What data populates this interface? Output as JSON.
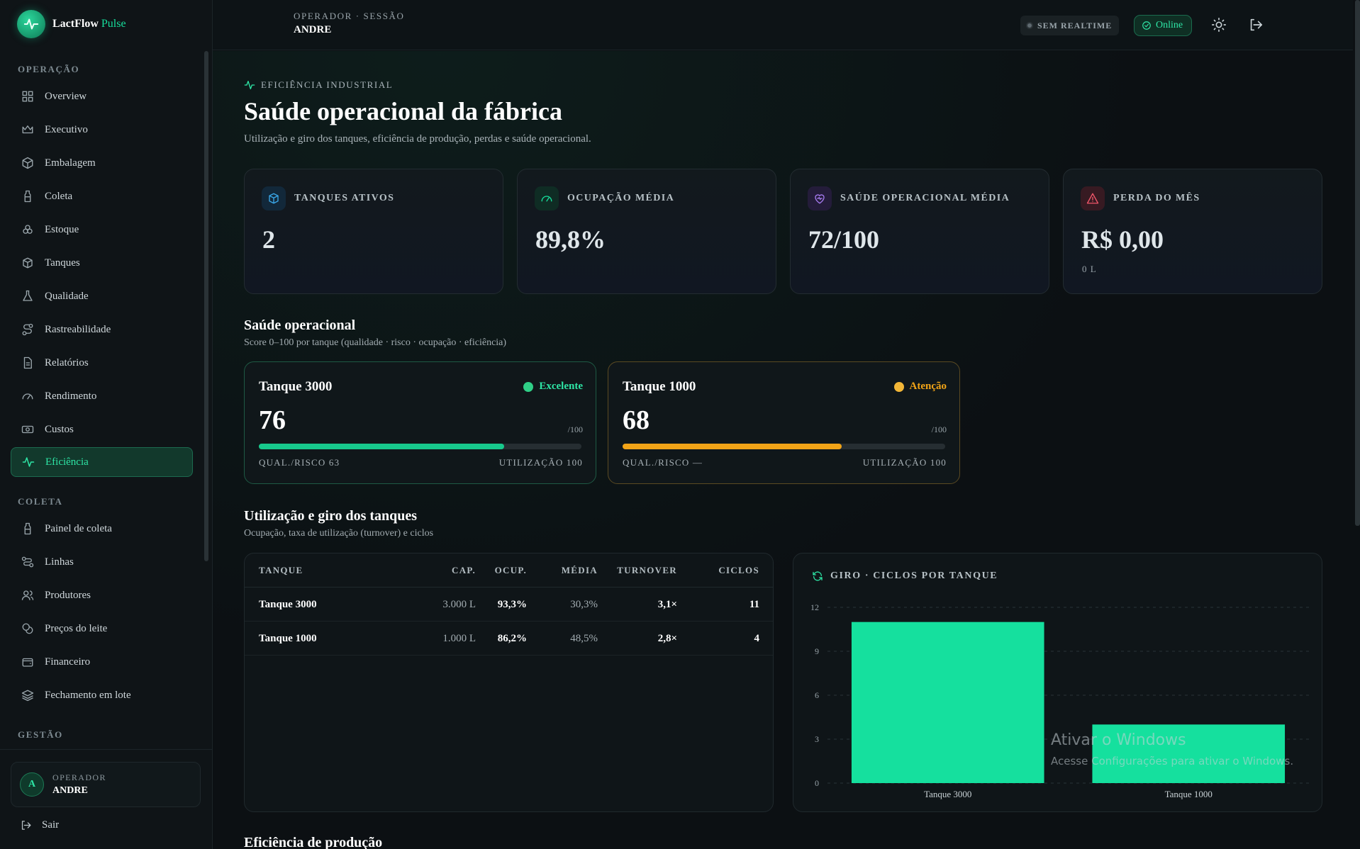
{
  "brand": {
    "name": "LactFlow",
    "accent": "Pulse"
  },
  "sidebar": {
    "sections": [
      {
        "label": "OPERAÇÃO"
      },
      {
        "label": "COLETA"
      },
      {
        "label": "GESTÃO"
      }
    ],
    "items": [
      {
        "label": "Overview",
        "icon": "grid-icon"
      },
      {
        "label": "Executivo",
        "icon": "crown-icon"
      },
      {
        "label": "Embalagem",
        "icon": "package-icon"
      },
      {
        "label": "Coleta",
        "icon": "bottle-icon"
      },
      {
        "label": "Estoque",
        "icon": "boxes-icon"
      },
      {
        "label": "Tanques",
        "icon": "tank-icon"
      },
      {
        "label": "Qualidade",
        "icon": "flask-icon"
      },
      {
        "label": "Rastreabilidade",
        "icon": "route-icon"
      },
      {
        "label": "Relatórios",
        "icon": "report-icon"
      },
      {
        "label": "Rendimento",
        "icon": "gauge-icon"
      },
      {
        "label": "Custos",
        "icon": "money-icon"
      },
      {
        "label": "Eficiência",
        "icon": "activity-icon",
        "active": true
      },
      {
        "label": "Painel de coleta",
        "icon": "milk-icon"
      },
      {
        "label": "Linhas",
        "icon": "path-icon"
      },
      {
        "label": "Produtores",
        "icon": "users-icon"
      },
      {
        "label": "Preços do leite",
        "icon": "coins-icon"
      },
      {
        "label": "Financeiro",
        "icon": "wallet-icon"
      },
      {
        "label": "Fechamento em lote",
        "icon": "layers-icon"
      }
    ],
    "operator": {
      "initial": "A",
      "role": "OPERADOR",
      "name": "ANDRE"
    },
    "logout": "Sair"
  },
  "topbar": {
    "session_label": "OPERADOR · SESSÃO",
    "session_user": "ANDRE",
    "realtime": "SEM REALTIME",
    "online": "Online"
  },
  "page": {
    "eyebrow": "EFICIÊNCIA INDUSTRIAL",
    "title": "Saúde operacional da fábrica",
    "subtitle": "Utilização e giro dos tanques, eficiência de produção, perdas e saúde operacional."
  },
  "kpis": [
    {
      "label": "TANQUES ATIVOS",
      "value": "2",
      "sub": "",
      "icon": "cube-icon",
      "color": "#3aa7e8"
    },
    {
      "label": "OCUPAÇÃO MÉDIA",
      "value": "89,8%",
      "sub": "",
      "icon": "gauge-icon",
      "color": "#17dd9b"
    },
    {
      "label": "SAÚDE OPERACIONAL MÉDIA",
      "value": "72/100",
      "sub": "",
      "icon": "heart-pulse-icon",
      "color": "#a77bf0"
    },
    {
      "label": "PERDA DO MÊS",
      "value": "R$ 0,00",
      "sub": "0 L",
      "icon": "warning-icon",
      "color": "#f0566a"
    }
  ],
  "health": {
    "title": "Saúde operacional",
    "subtitle": "Score 0–100 por tanque (qualidade · risco · ocupação · eficiência)",
    "tanks": [
      {
        "name": "Tanque 3000",
        "status": "Excelente",
        "score": "76",
        "score_value": 76,
        "max": "/100",
        "left": "QUAL./RISCO 63",
        "right": "UTILIZAÇÃO 100",
        "color": "#17c98c"
      },
      {
        "name": "Tanque 1000",
        "status": "Atenção",
        "score": "68",
        "score_value": 68,
        "max": "/100",
        "left": "QUAL./RISCO —",
        "right": "UTILIZAÇÃO 100",
        "color": "#f2a417"
      }
    ]
  },
  "utilization": {
    "title": "Utilização e giro dos tanques",
    "subtitle": "Ocupação, taxa de utilização (turnover) e ciclos",
    "columns": [
      "TANQUE",
      "CAP.",
      "OCUP.",
      "MÉDIA",
      "TURNOVER",
      "CICLOS"
    ],
    "rows": [
      [
        "Tanque 3000",
        "3.000 L",
        "93,3%",
        "30,3%",
        "3,1×",
        "11"
      ],
      [
        "Tanque 1000",
        "1.000 L",
        "86,2%",
        "48,5%",
        "2,8×",
        "4"
      ]
    ]
  },
  "chart_data": {
    "type": "bar",
    "title": "GIRO · CICLOS POR TANQUE",
    "categories": [
      "Tanque 3000",
      "Tanque 1000"
    ],
    "values": [
      11,
      4
    ],
    "yticks": [
      "0",
      "3",
      "6",
      "9",
      "12"
    ],
    "ylim": [
      0,
      12
    ],
    "grid": true,
    "bar_color": "#15e09e"
  },
  "next_section": "Eficiência de produção",
  "watermark": {
    "line1": "Ativar o Windows",
    "line2": "Acesse Configurações para ativar o Windows."
  }
}
